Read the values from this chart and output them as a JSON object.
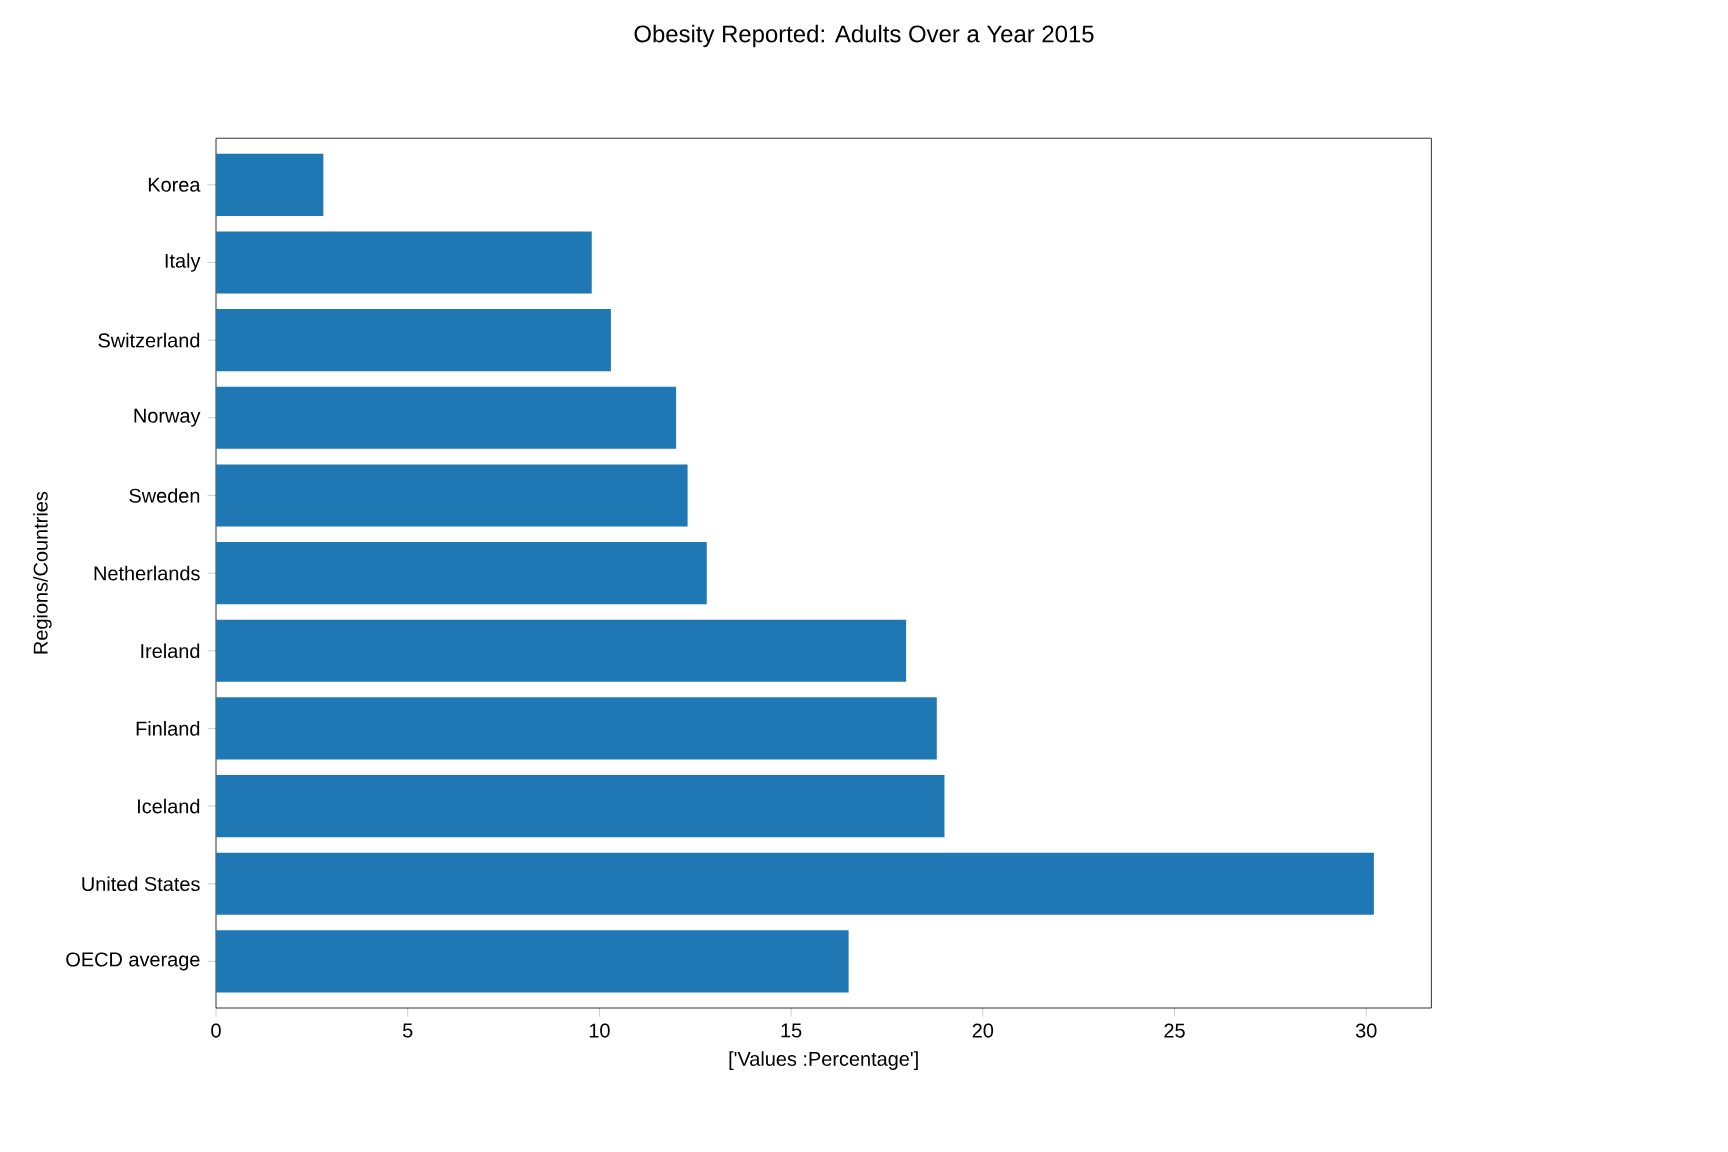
{
  "chart_data": {
    "type": "bar",
    "orientation": "horizontal",
    "title": "Obesity Reported: Adults Over a Year 2015",
    "xlabel": "['Values :Percentage']",
    "ylabel": "Regions/Countries",
    "categories": [
      "Korea",
      "Italy",
      "Switzerland",
      "Norway",
      "Sweden",
      "Netherlands",
      "Ireland",
      "Finland",
      "Iceland",
      "United States",
      "OECD average"
    ],
    "values": [
      2.8,
      9.8,
      10.3,
      12.0,
      12.3,
      12.8,
      18.0,
      18.8,
      19.0,
      30.2,
      16.5
    ],
    "color": "#1f77b4",
    "xlim": [
      0,
      31.7
    ],
    "xticks": [
      0,
      5,
      10,
      15,
      20,
      25,
      30
    ]
  }
}
